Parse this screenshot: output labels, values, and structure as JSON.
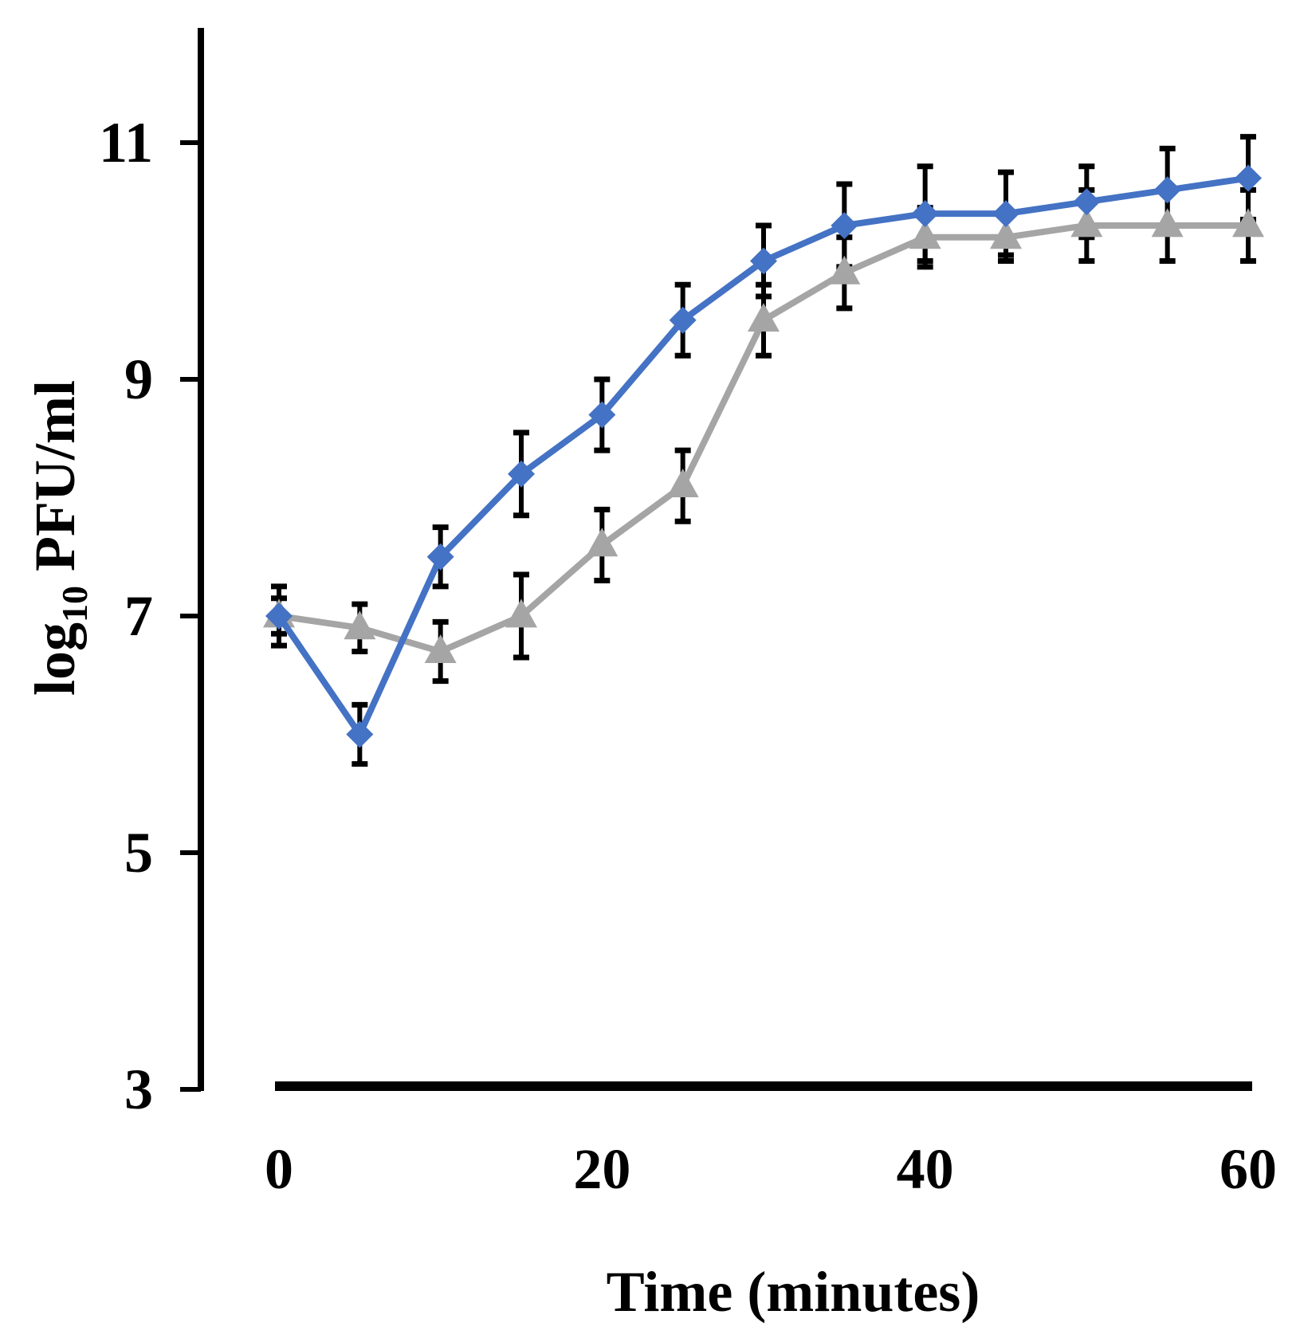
{
  "chart_data": {
    "type": "line",
    "title": "",
    "xlabel": "Time (minutes)",
    "ylabel": {
      "prefix": "log",
      "subscript": "10",
      "suffix": " PFU/ml"
    },
    "xlim": [
      0,
      60
    ],
    "ylim": [
      3,
      12
    ],
    "xticks": [
      0,
      20,
      40,
      60
    ],
    "yticks": [
      3,
      5,
      7,
      9,
      11
    ],
    "x": [
      0,
      5,
      10,
      15,
      20,
      25,
      30,
      35,
      40,
      45,
      50,
      55,
      60
    ],
    "series": [
      {
        "name": "series-blue",
        "color": "#4472C4",
        "marker": "diamond",
        "values": [
          7.0,
          6.0,
          7.5,
          8.2,
          8.7,
          9.5,
          10.0,
          10.3,
          10.4,
          10.4,
          10.5,
          10.6,
          10.7
        ],
        "errors": [
          0.25,
          0.25,
          0.25,
          0.35,
          0.3,
          0.3,
          0.3,
          0.35,
          0.4,
          0.35,
          0.3,
          0.35,
          0.35
        ]
      },
      {
        "name": "series-gray",
        "color": "#A5A5A5",
        "marker": "triangle",
        "values": [
          7.0,
          6.9,
          6.7,
          7.0,
          7.6,
          8.1,
          9.5,
          9.9,
          10.2,
          10.2,
          10.3,
          10.3,
          10.3
        ],
        "errors": [
          0.15,
          0.2,
          0.25,
          0.35,
          0.3,
          0.3,
          0.3,
          0.3,
          0.25,
          0.2,
          0.3,
          0.3,
          0.3
        ]
      }
    ],
    "baseline_bar": {
      "y": 3,
      "from_x": 0,
      "to_x": 60
    },
    "grid": false,
    "legend": "none"
  }
}
